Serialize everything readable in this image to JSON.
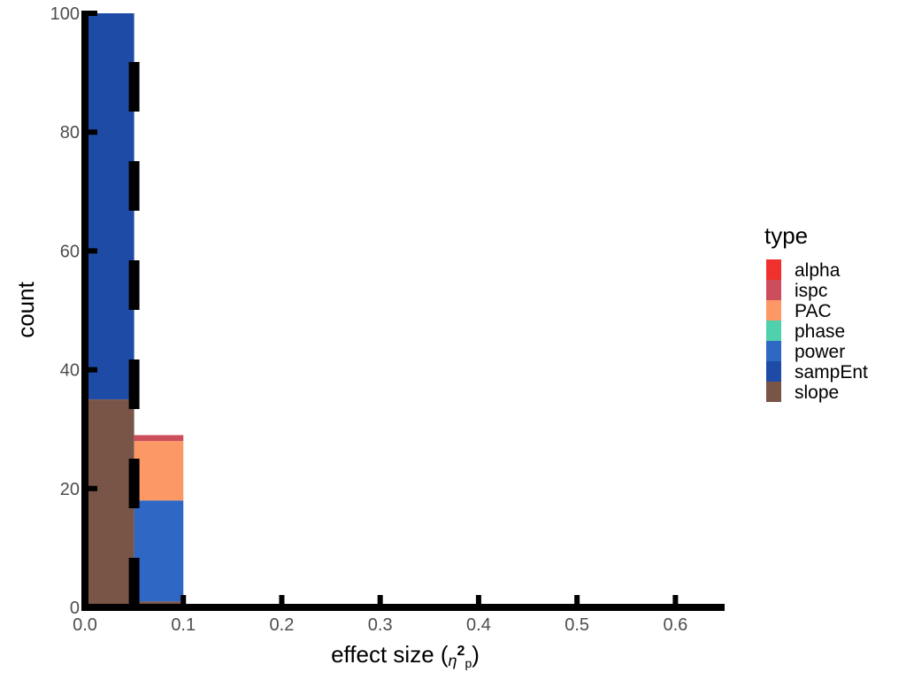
{
  "chart_data": {
    "type": "bar",
    "stacked": true,
    "xlabel": "effect size (",
    "xlabel_symbol": "η",
    "xlabel_superscript": "2",
    "xlabel_subscript": "p",
    "xlabel_close": ")",
    "ylabel": "count",
    "xlim": [
      0.0,
      0.65
    ],
    "ylim": [
      0,
      100
    ],
    "x_ticks": [
      "0.0",
      "0.1",
      "0.2",
      "0.3",
      "0.4",
      "0.5",
      "0.6"
    ],
    "x_tick_values": [
      0.0,
      0.1,
      0.2,
      0.3,
      0.4,
      0.5,
      0.6
    ],
    "y_ticks": [
      "0",
      "20",
      "40",
      "60",
      "80",
      "100"
    ],
    "y_tick_values": [
      0,
      20,
      40,
      60,
      80,
      100
    ],
    "bins": [
      {
        "x_start": 0.0,
        "x_end": 0.05
      },
      {
        "x_start": 0.05,
        "x_end": 0.1
      }
    ],
    "reference_line_x": 0.05,
    "series": [
      {
        "name": "slope",
        "color": "#795548",
        "values": [
          35,
          1
        ]
      },
      {
        "name": "sampEnt",
        "color": "#1e4ba6",
        "values": [
          65,
          0
        ]
      },
      {
        "name": "power",
        "color": "#2e67c4",
        "values": [
          0,
          17
        ]
      },
      {
        "name": "phase",
        "color": "#4fd1ae",
        "values": [
          0,
          0
        ]
      },
      {
        "name": "PAC",
        "color": "#fb9866",
        "values": [
          0,
          10
        ]
      },
      {
        "name": "ispc",
        "color": "#cc4e5c",
        "values": [
          0,
          1
        ]
      },
      {
        "name": "alpha",
        "color": "#f0302c",
        "values": [
          0,
          0
        ]
      }
    ],
    "legend": {
      "title": "type",
      "position": "right",
      "entries": [
        {
          "label": "alpha",
          "color": "#f0302c"
        },
        {
          "label": "ispc",
          "color": "#cc4e5c"
        },
        {
          "label": "PAC",
          "color": "#fb9866"
        },
        {
          "label": "phase",
          "color": "#4fd1ae"
        },
        {
          "label": "power",
          "color": "#2e67c4"
        },
        {
          "label": "sampEnt",
          "color": "#1e4ba6"
        },
        {
          "label": "slope",
          "color": "#795548"
        }
      ]
    },
    "grid": false
  }
}
